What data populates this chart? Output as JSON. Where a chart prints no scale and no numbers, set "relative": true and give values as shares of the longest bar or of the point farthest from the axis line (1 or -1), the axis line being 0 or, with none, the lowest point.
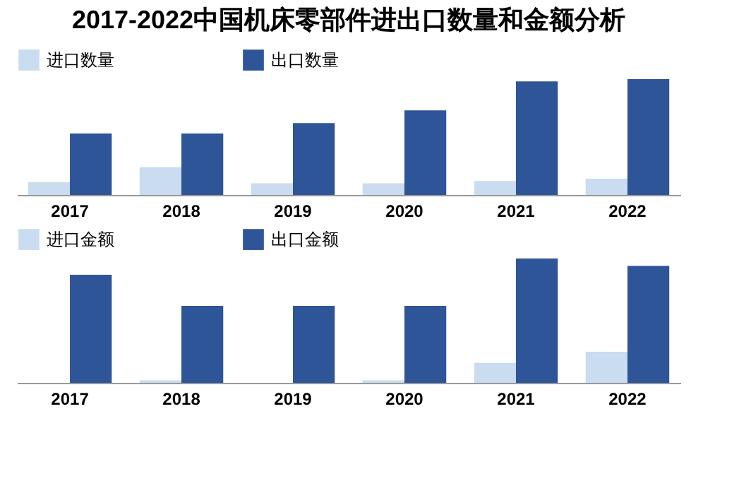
{
  "chart_data": [
    {
      "type": "bar",
      "title": "2017-2022中国机床零部件进出口数量和金额分析",
      "categories": [
        "2017",
        "2018",
        "2019",
        "2020",
        "2021",
        "2022"
      ],
      "relative": true,
      "legend": "top left",
      "series": [
        {
          "name": "进口数量",
          "color": "#c9dcf0",
          "values": [
            0.11,
            0.24,
            0.1,
            0.1,
            0.12,
            0.14
          ]
        },
        {
          "name": "出口数量",
          "color": "#2e5597",
          "values": [
            0.53,
            0.53,
            0.62,
            0.73,
            0.98,
            1
          ]
        }
      ]
    },
    {
      "type": "bar",
      "categories": [
        "2017",
        "2018",
        "2019",
        "2020",
        "2021",
        "2022"
      ],
      "relative": true,
      "legend": "top left",
      "series": [
        {
          "name": "进口金额",
          "color": "#c9dcf0",
          "values": [
            null,
            0.02,
            null,
            0.02,
            0.16,
            0.25
          ]
        },
        {
          "name": "出口金额",
          "color": "#2e5597",
          "values": [
            0.87,
            0.62,
            0.62,
            0.62,
            1,
            0.94
          ]
        }
      ]
    }
  ]
}
